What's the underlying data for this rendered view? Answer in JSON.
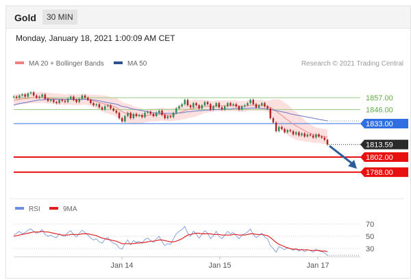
{
  "header": {
    "instrument": "Gold",
    "interval": "30 MIN"
  },
  "datetime": "Monday, January 18, 2021 1:00:09 AM CET",
  "legend": {
    "main": [
      {
        "label": "MA 20 + Bollinger Bands",
        "color": "#f08080"
      },
      {
        "label": "MA 50",
        "color": "#2b4f8f"
      }
    ],
    "rsi": [
      {
        "label": "RSI",
        "color": "#6b8fe0"
      },
      {
        "label": "9MA",
        "color": "#e02020"
      }
    ]
  },
  "credit": "Research © 2021 Trading Central",
  "chart_data": [
    {
      "type": "candlestick",
      "ylim": [
        1785,
        1870
      ],
      "x_ticks": [
        "Jan 14",
        "Jan 15",
        "Jan 17"
      ],
      "levels": [
        {
          "value": 1857.0,
          "label": "1857.00",
          "color": "#9fd08a",
          "kind": "resistance"
        },
        {
          "value": 1846.0,
          "label": "1846.00",
          "color": "#9fd08a",
          "kind": "resistance"
        },
        {
          "value": 1833.0,
          "label": "1833.00",
          "color": "#2f6fe0",
          "kind": "pivot"
        },
        {
          "value": 1802.0,
          "label": "1802.00",
          "color": "#e81010",
          "kind": "support"
        },
        {
          "value": 1788.0,
          "label": "1788.00",
          "color": "#e81010",
          "kind": "support"
        }
      ],
      "last_price": {
        "value": 1813.59,
        "label": "1813.59",
        "color": "#2a2a2a"
      },
      "close": [
        1858,
        1857,
        1859,
        1860,
        1858,
        1861,
        1862,
        1859,
        1857,
        1858,
        1860,
        1856,
        1854,
        1855,
        1853,
        1852,
        1855,
        1854,
        1853,
        1856,
        1858,
        1855,
        1853,
        1856,
        1859,
        1857,
        1855,
        1852,
        1850,
        1851,
        1848,
        1846,
        1849,
        1850,
        1847,
        1845,
        1843,
        1838,
        1835,
        1840,
        1843,
        1838,
        1842,
        1840,
        1841,
        1839,
        1843,
        1844,
        1842,
        1840,
        1843,
        1845,
        1841,
        1838,
        1840,
        1839,
        1843,
        1847,
        1849,
        1851,
        1855,
        1850,
        1848,
        1852,
        1850,
        1847,
        1850,
        1853,
        1851,
        1846,
        1849,
        1852,
        1848,
        1846,
        1849,
        1852,
        1850,
        1851,
        1849,
        1846,
        1849,
        1850,
        1852,
        1855,
        1851,
        1848,
        1850,
        1852,
        1849,
        1847,
        1838,
        1834,
        1826,
        1830,
        1828,
        1825,
        1827,
        1826,
        1823,
        1825,
        1822,
        1824,
        1821,
        1823,
        1822,
        1820,
        1823,
        1821,
        1820,
        1818,
        1813.6
      ],
      "ma20": [
        1855,
        1855,
        1855.5,
        1856,
        1856,
        1856.5,
        1857,
        1857,
        1857,
        1857,
        1857.5,
        1857,
        1856.5,
        1856.5,
        1856,
        1856,
        1855.5,
        1855.5,
        1855,
        1855.5,
        1855.5,
        1855,
        1855,
        1855,
        1855.5,
        1855.5,
        1855,
        1854.5,
        1854,
        1853.5,
        1852.5,
        1852,
        1851,
        1850.5,
        1849.5,
        1849,
        1848,
        1846,
        1844,
        1843,
        1842.5,
        1841.5,
        1841,
        1840.5,
        1840.5,
        1840,
        1840,
        1840.5,
        1841,
        1841,
        1841,
        1841.5,
        1842,
        1841.5,
        1841,
        1841,
        1841.5,
        1842,
        1843,
        1844,
        1845,
        1846,
        1846.5,
        1847,
        1847.5,
        1848,
        1848.5,
        1849,
        1849,
        1849,
        1849,
        1849.5,
        1849.5,
        1849.5,
        1849.5,
        1849.5,
        1849.5,
        1849.5,
        1849.5,
        1849,
        1849,
        1849,
        1849.5,
        1850,
        1850,
        1850,
        1850,
        1850,
        1849.5,
        1849,
        1848,
        1846.5,
        1844.5,
        1842.5,
        1840.5,
        1838.5,
        1836.5,
        1834.5,
        1832.5,
        1831,
        1829.5,
        1828,
        1826.5,
        1825,
        1824,
        1823,
        1822.5,
        1822,
        1821.5,
        1821,
        1820.5
      ],
      "bb_width": [
        5,
        5,
        5,
        5,
        5,
        5,
        5,
        5,
        5,
        5,
        5,
        5,
        5,
        5,
        5,
        5,
        5,
        5,
        5,
        5,
        5,
        5,
        5,
        5,
        5,
        5,
        5,
        5,
        6,
        6,
        7,
        7,
        8,
        8,
        8,
        8,
        9,
        9,
        9,
        9,
        9,
        9,
        8,
        8,
        7,
        7,
        6,
        6,
        6,
        6,
        6,
        6,
        6,
        6,
        6,
        6,
        6,
        6,
        7,
        7,
        8,
        8,
        8,
        8,
        8,
        7,
        7,
        6,
        6,
        5,
        5,
        5,
        5,
        5,
        5,
        5,
        5,
        5,
        5,
        5,
        5,
        5,
        5,
        5,
        5,
        5,
        5,
        5,
        5,
        5,
        7,
        9,
        11,
        13,
        14,
        14,
        14,
        14,
        13,
        13,
        12,
        11,
        10,
        9,
        8,
        8,
        7,
        7,
        7,
        7,
        7
      ],
      "ma50": [
        1850,
        1851,
        1851.5,
        1852,
        1852.5,
        1853,
        1853.5,
        1854,
        1854.5,
        1855,
        1855,
        1855.5,
        1855.5,
        1855.5,
        1855.5,
        1855.5,
        1855.5,
        1855.5,
        1855.5,
        1855.5,
        1855.5,
        1855.5,
        1855.5,
        1855.5,
        1855.5,
        1855.5,
        1855.5,
        1855,
        1855,
        1854.5,
        1854,
        1853.5,
        1853,
        1852.5,
        1852,
        1851.5,
        1851,
        1850,
        1849,
        1848.5,
        1848,
        1847,
        1846.5,
        1846,
        1845.5,
        1845,
        1844.5,
        1844,
        1843.5,
        1843,
        1843,
        1842.5,
        1842.5,
        1842.5,
        1842.5,
        1842.5,
        1842.5,
        1842.5,
        1843,
        1843,
        1843.5,
        1844,
        1844,
        1844.5,
        1844.5,
        1845,
        1845,
        1845.5,
        1845.5,
        1845.5,
        1846,
        1846,
        1846,
        1846.5,
        1846.5,
        1846.5,
        1846.5,
        1847,
        1847,
        1847,
        1847,
        1847,
        1847,
        1847.5,
        1847.5,
        1847.5,
        1847.5,
        1847,
        1847,
        1846.5,
        1846,
        1845.5,
        1845,
        1844.5,
        1844,
        1843.5,
        1843,
        1842,
        1841.5,
        1841,
        1840.5,
        1840,
        1839.5,
        1839,
        1838.5,
        1838,
        1837.5,
        1837,
        1836.5,
        1836,
        1835.5
      ]
    },
    {
      "type": "line",
      "ylim": [
        20,
        80
      ],
      "y_ticks": [
        70,
        50,
        30
      ],
      "series": [
        {
          "name": "RSI",
          "values": [
            52,
            55,
            58,
            54,
            56,
            60,
            62,
            58,
            55,
            57,
            61,
            53,
            50,
            52,
            49,
            48,
            54,
            51,
            50,
            56,
            59,
            53,
            49,
            55,
            60,
            56,
            52,
            47,
            44,
            46,
            41,
            39,
            45,
            48,
            42,
            39,
            37,
            31,
            29,
            38,
            44,
            36,
            43,
            40,
            42,
            38,
            45,
            47,
            43,
            40,
            46,
            50,
            41,
            35,
            38,
            37,
            46,
            54,
            58,
            61,
            66,
            55,
            50,
            58,
            54,
            47,
            53,
            59,
            55,
            46,
            51,
            58,
            50,
            46,
            52,
            58,
            54,
            56,
            51,
            46,
            52,
            54,
            57,
            62,
            53,
            48,
            51,
            55,
            49,
            46,
            35,
            30,
            24,
            33,
            31,
            28,
            32,
            30,
            27,
            30,
            26,
            29,
            25,
            28,
            27,
            24,
            29,
            26,
            25,
            23,
            19
          ]
        },
        {
          "name": "9MA",
          "values": [
            50,
            51,
            52,
            53,
            54,
            55,
            56,
            57,
            57,
            57,
            58,
            57,
            57,
            56,
            55,
            54,
            53,
            52,
            52,
            52,
            53,
            53,
            53,
            53,
            54,
            54,
            54,
            53,
            52,
            51,
            49,
            47,
            46,
            45,
            44,
            43,
            42,
            40,
            38,
            38,
            38,
            38,
            38,
            39,
            39,
            40,
            40,
            41,
            42,
            42,
            43,
            44,
            44,
            43,
            42,
            41,
            41,
            42,
            44,
            46,
            49,
            52,
            53,
            54,
            55,
            55,
            54,
            54,
            54,
            54,
            53,
            53,
            53,
            52,
            52,
            52,
            52,
            53,
            53,
            52,
            52,
            52,
            53,
            54,
            54,
            53,
            53,
            53,
            52,
            51,
            48,
            44,
            40,
            37,
            35,
            33,
            31,
            30,
            29,
            29,
            28,
            28,
            28,
            28,
            27,
            27,
            27,
            27,
            26,
            26,
            25
          ]
        }
      ]
    }
  ]
}
